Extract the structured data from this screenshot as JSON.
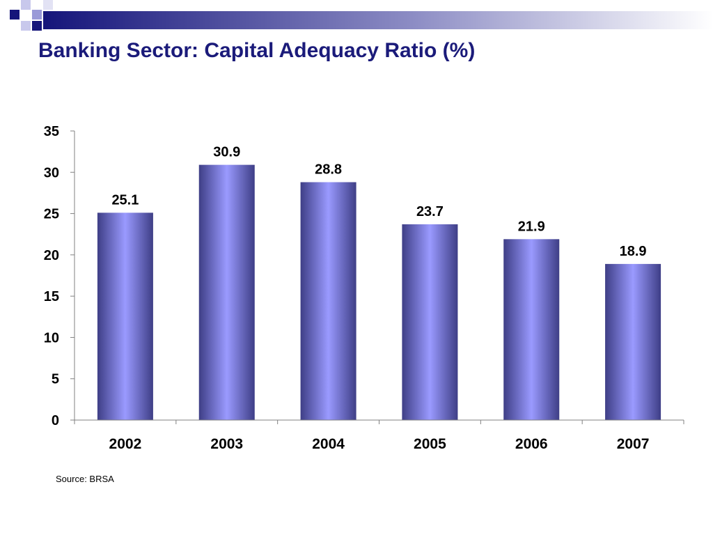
{
  "slide": {
    "title": "Banking Sector: Capital Adequacy Ratio (%)",
    "source": "Source: BRSA"
  },
  "colors": {
    "title": "#1b1b7a",
    "bar_edge": "#3e3e86",
    "bar_center": "#9a9aff"
  },
  "chart_data": {
    "type": "bar",
    "title": "",
    "xlabel": "",
    "ylabel": "",
    "categories": [
      "2002",
      "2003",
      "2004",
      "2005",
      "2006",
      "2007"
    ],
    "values": [
      25.1,
      30.9,
      28.8,
      23.7,
      21.9,
      18.9
    ],
    "data_labels": [
      "25.1",
      "30.9",
      "28.8",
      "23.7",
      "21.9",
      "18.9"
    ],
    "ylim": [
      0,
      35
    ],
    "yticks": [
      0,
      5,
      10,
      15,
      20,
      25,
      30,
      35
    ],
    "grid": false,
    "legend": "none"
  }
}
